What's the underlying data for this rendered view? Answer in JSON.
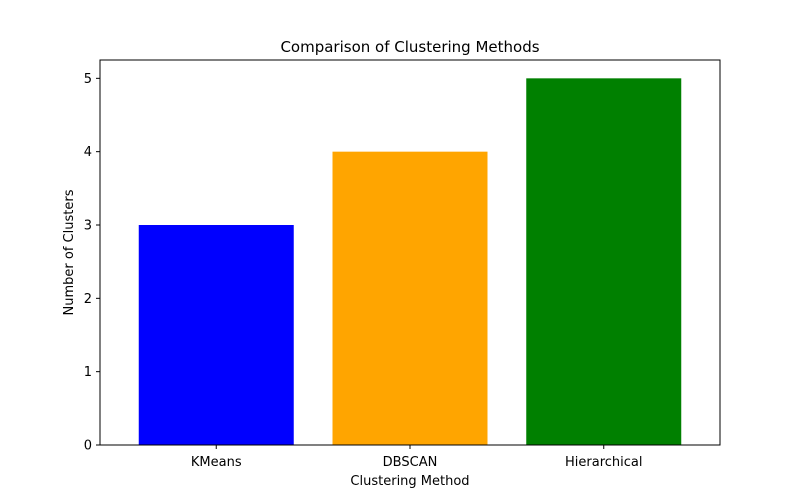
{
  "chart_data": {
    "type": "bar",
    "title": "Comparison of Clustering Methods",
    "xlabel": "Clustering Method",
    "ylabel": "Number of Clusters",
    "categories": [
      "KMeans",
      "DBSCAN",
      "Hierarchical"
    ],
    "values": [
      3,
      4,
      5
    ],
    "colors": [
      "#0000ff",
      "#ffa500",
      "#008000"
    ],
    "ylim": [
      0,
      5.25
    ],
    "yticks": [
      "0",
      "1",
      "2",
      "3",
      "4",
      "5"
    ],
    "grid": false,
    "legend": "none"
  }
}
